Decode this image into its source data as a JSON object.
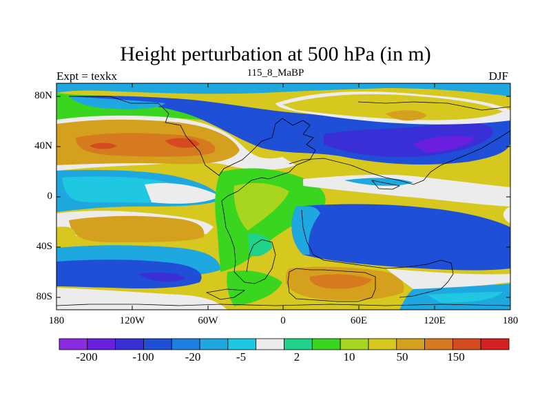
{
  "title": "Height perturbation at 500 hPa (in m)",
  "left_string": "Expt = texkx",
  "center_string": "115_8_MaBP",
  "right_string": "DJF",
  "lat_labels": [
    "80N",
    "40N",
    "0",
    "40S",
    "80S"
  ],
  "lon_labels": [
    "180",
    "120W",
    "60W",
    "0",
    "60E",
    "120E",
    "180"
  ],
  "colorbar": {
    "colors": [
      "#8a2be2",
      "#6a1fe0",
      "#3a2fd6",
      "#1f4fd6",
      "#1f7fe0",
      "#1fa8e0",
      "#1fc8e0",
      "#ececec",
      "#1fd38a",
      "#3ad61f",
      "#a8d61f",
      "#d6c81f",
      "#d6a01f",
      "#d67a1f",
      "#d64a1f",
      "#d61f1f"
    ],
    "labels": [
      "-200",
      "-100",
      "-20",
      "-5",
      "2",
      "10",
      "50",
      "150"
    ]
  },
  "field_colors": {
    "bg": "#d6c81f",
    "neutral": "#ececec",
    "green": "#3ad61f",
    "yellow_green": "#a8d61f",
    "orange": "#d6a01f",
    "dark_orange": "#d67a1f",
    "red_orange": "#d64a1f",
    "blue": "#1f7fe0",
    "mid_blue": "#1f4fd6",
    "deep_blue": "#3a2fd6",
    "purple": "#6a1fe0",
    "cyan": "#1fc8e0",
    "sky": "#1fa8e0",
    "teal": "#1fd38a"
  }
}
